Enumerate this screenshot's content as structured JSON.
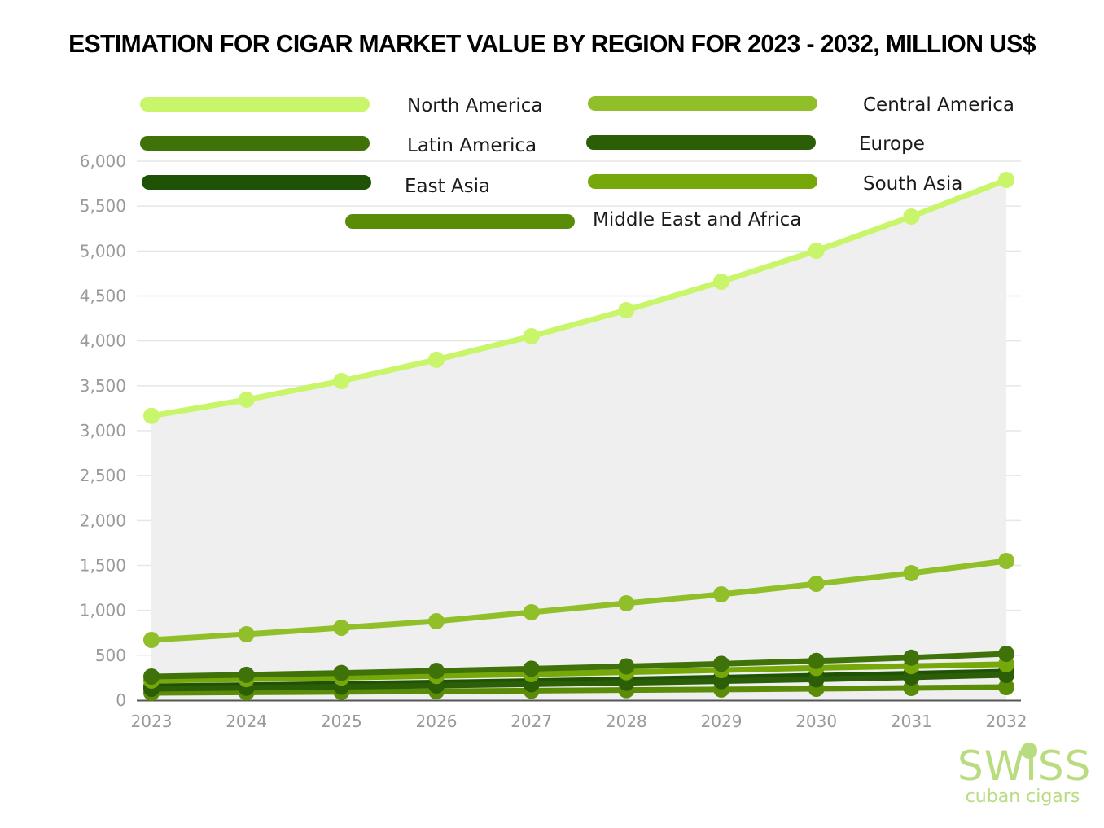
{
  "chart_data": {
    "type": "line",
    "title": "ESTIMATION FOR CIGAR MARKET VALUE BY REGION FOR 2023 - 2032, MILLION  US$",
    "xlabel": "",
    "ylabel": "",
    "x": [
      "2023",
      "2024",
      "2025",
      "2026",
      "2027",
      "2028",
      "2029",
      "2030",
      "2031",
      "2032"
    ],
    "ylim": [
      0,
      6000
    ],
    "yticks": [
      0,
      500,
      1000,
      1500,
      2000,
      2500,
      3000,
      3500,
      4000,
      4500,
      5000,
      5500,
      6000
    ],
    "ytick_labels": [
      "0",
      "500",
      "1,000",
      "1,500",
      "2,000",
      "2,500",
      "3,000",
      "3,500",
      "4,000",
      "4,500",
      "5,000",
      "5,500",
      "6,000"
    ],
    "grid": true,
    "legend_position": "top",
    "series": [
      {
        "name": "North America",
        "color": "#c8f56a",
        "area": true,
        "values": [
          3165,
          3345,
          3553,
          3790,
          4051,
          4341,
          4659,
          5003,
          5384,
          5792
        ]
      },
      {
        "name": "Central America",
        "color": "#90bf2a",
        "values": [
          671,
          734,
          807,
          879,
          979,
          1079,
          1178,
          1296,
          1414,
          1550
        ]
      },
      {
        "name": "Latin America",
        "color": "#3f7209",
        "values": [
          263,
          282,
          303,
          326,
          350,
          376,
          405,
          437,
          473,
          517
        ]
      },
      {
        "name": "Europe",
        "color": "#2b5e06",
        "values": [
          127,
          138,
          150,
          163,
          178,
          194,
          212,
          232,
          255,
          281
        ]
      },
      {
        "name": "East Asia",
        "color": "#1e5204",
        "values": [
          154,
          166,
          180,
          195,
          212,
          230,
          250,
          272,
          294,
          317
        ]
      },
      {
        "name": "South Asia",
        "color": "#76a80a",
        "values": [
          218,
          234,
          251,
          270,
          290,
          312,
          335,
          359,
          379,
          400
        ]
      },
      {
        "name": "Middle East and Africa",
        "color": "#5a8c08",
        "values": [
          82,
          87,
          93,
          99,
          105,
          112,
          119,
          127,
          136,
          145
        ]
      }
    ]
  },
  "logo": {
    "main": "SWISS",
    "sub": "cuban cigars"
  }
}
